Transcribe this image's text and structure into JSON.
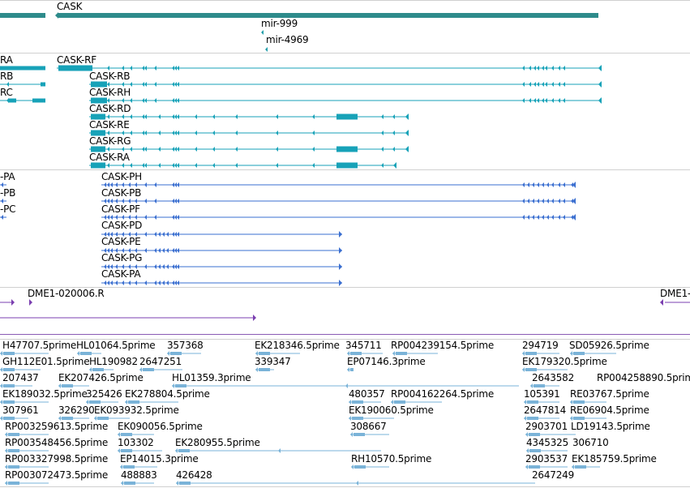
{
  "colors": {
    "gene": "#2e8b8b",
    "gene_thin": "#1f9eaa",
    "transcript_rna": "#17a2b8",
    "protein": "#3a6fd0",
    "dme": "#7b3fb0",
    "est": "#7ab3d8",
    "separator": "#d0d0d0"
  },
  "genes": {
    "cask": "CASK",
    "mir999": "mir-999",
    "mir4969": "mir-4969"
  },
  "transcripts": {
    "left": [
      "RA",
      "RB",
      "RC"
    ],
    "labels": [
      "CASK-RF",
      "CASK-RB",
      "CASK-RH",
      "CASK-RD",
      "CASK-RE",
      "CASK-RG",
      "CASK-RA"
    ]
  },
  "proteins": {
    "left": [
      "-PA",
      "-PB",
      "-PC"
    ],
    "labels": [
      "CASK-PH",
      "CASK-PB",
      "CASK-PF",
      "CASK-PD",
      "CASK-PE",
      "CASK-PG",
      "CASK-PA"
    ]
  },
  "dme": {
    "left": "DME1-020006.R",
    "right": "DME1-"
  },
  "ests": [
    [
      "H47707.5prime",
      "HL01064.5prime",
      "357368",
      "EK218346.5prime",
      "345711",
      "RP004239154.5prime",
      "294719",
      "SD05926.5prime"
    ],
    [
      "GH112E01.5prime",
      "HL190982",
      "2647251",
      "339347",
      "EP07146.3prime",
      "EK179320.5prime"
    ],
    [
      "207437",
      "EK207426.5prime",
      "HL01359.3prime",
      "2643582",
      "RP004258890.5prime"
    ],
    [
      "EK189032.5prime",
      "325426",
      "EK278804.5prime",
      "480357",
      "RP004162264.5prime",
      "105391",
      "RE03767.5prime"
    ],
    [
      "307961",
      "326290",
      "EK093932.5prime",
      "EK190060.5prime",
      "2647814",
      "RE06904.5prime"
    ],
    [
      "RP003259613.5prime",
      "EK090056.5prime",
      "308667",
      "2903701",
      "LD19143.5prime"
    ],
    [
      "RP003548456.5prime",
      "103302",
      "EK280955.5prime",
      "4345325",
      "306710"
    ],
    [
      "RP003327998.5prime",
      "EP14015.3prime",
      "RH10570.5prime",
      "2903537",
      "EK185759.5prime"
    ],
    [
      "RP003072473.5prime",
      "488883",
      "426428",
      "2647249"
    ]
  ]
}
